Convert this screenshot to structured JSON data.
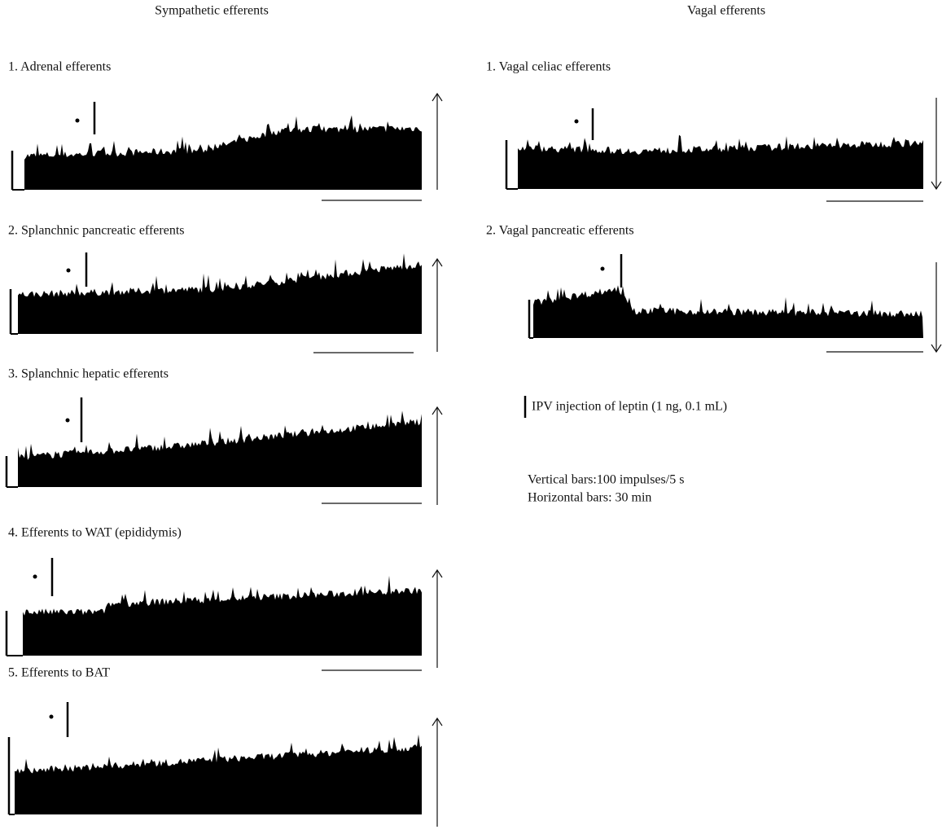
{
  "headers": {
    "sympathetic": "Sympathetic efferents",
    "vagal": "Vagal efferents"
  },
  "sympathetic_panels": [
    {
      "label": "1. Adrenal efferents"
    },
    {
      "label": "2. Splanchnic pancreatic efferents"
    },
    {
      "label": "3. Splanchnic hepatic efferents"
    },
    {
      "label": "4. Efferents to WAT (epididymis)"
    },
    {
      "label": "5. Efferents to BAT"
    }
  ],
  "vagal_panels": [
    {
      "label": "1. Vagal celiac efferents"
    },
    {
      "label": "2. Vagal pancreatic efferents"
    }
  ],
  "legend": {
    "injection": "IPV injection of leptin (1 ng, 0.1 mL)",
    "vertical_bars": "Vertical bars:100 impulses/5 s",
    "horizontal_bars": "Horizontal bars: 30 min"
  }
}
